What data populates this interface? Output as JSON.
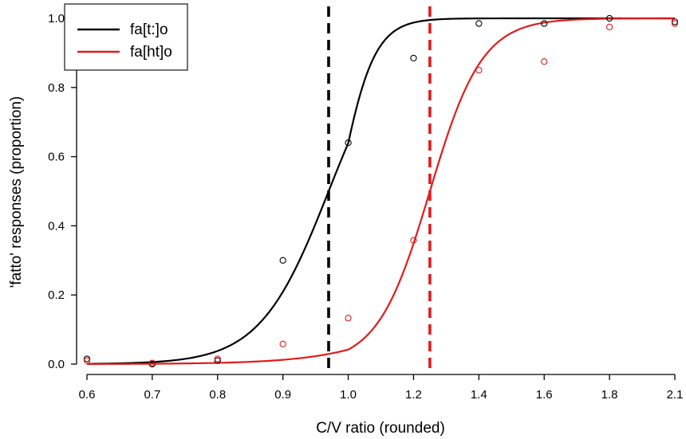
{
  "chart_data": {
    "type": "line",
    "title": "",
    "xlabel": "C/V ratio (rounded)",
    "ylabel": "'fatto' responses (proportion)",
    "xlim": [
      0.6,
      2.1
    ],
    "ylim": [
      0.0,
      1.0
    ],
    "x_ticks": [
      0.6,
      0.7,
      0.8,
      0.9,
      1.0,
      1.2,
      1.4,
      1.6,
      1.8,
      2.1
    ],
    "x_tick_labels": [
      "0.6",
      "0.7",
      "0.8",
      "0.9",
      "1.0",
      "1.2",
      "1.4",
      "1.6",
      "1.8",
      "2.1"
    ],
    "y_ticks": [
      0.0,
      0.2,
      0.4,
      0.6,
      0.8,
      1.0
    ],
    "y_tick_labels": [
      "0.0",
      "0.2",
      "0.4",
      "0.6",
      "0.8",
      "1.0"
    ],
    "grid": false,
    "legend": {
      "position": "top-left"
    },
    "series": [
      {
        "name": "fa[t:]o",
        "color": "#000000",
        "points": [
          {
            "x": 0.6,
            "y": 0.015
          },
          {
            "x": 0.7,
            "y": 0.0
          },
          {
            "x": 0.8,
            "y": 0.01
          },
          {
            "x": 0.9,
            "y": 0.3
          },
          {
            "x": 1.0,
            "y": 0.64
          },
          {
            "x": 1.2,
            "y": 0.885
          },
          {
            "x": 1.4,
            "y": 0.985
          },
          {
            "x": 1.6,
            "y": 0.985
          },
          {
            "x": 1.8,
            "y": 1.0
          },
          {
            "x": 2.1,
            "y": 0.99
          }
        ],
        "boundary": 0.97
      },
      {
        "name": "fa[ht]o",
        "color": "#e31a1c",
        "points": [
          {
            "x": 0.6,
            "y": 0.01
          },
          {
            "x": 0.7,
            "y": 0.003
          },
          {
            "x": 0.8,
            "y": 0.015
          },
          {
            "x": 0.9,
            "y": 0.058
          },
          {
            "x": 1.0,
            "y": 0.133
          },
          {
            "x": 1.2,
            "y": 0.358
          },
          {
            "x": 1.4,
            "y": 0.85
          },
          {
            "x": 1.6,
            "y": 0.875
          },
          {
            "x": 1.8,
            "y": 0.975
          },
          {
            "x": 2.1,
            "y": 0.985
          }
        ],
        "boundary": 1.25
      }
    ]
  }
}
